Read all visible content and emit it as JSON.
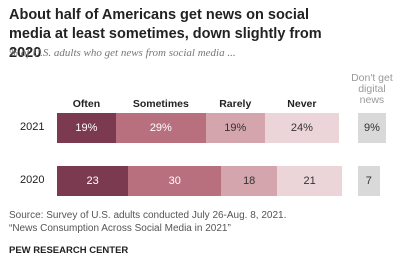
{
  "chart_data": {
    "type": "stacked_bar",
    "orientation": "horizontal",
    "title": "About half of Americans get news on social media at least sometimes, down slightly from 2020",
    "subtitle": "% of U.S. adults who get news from social media ...",
    "categories": [
      "2021",
      "2020"
    ],
    "series": [
      {
        "name": "Often",
        "color": "#7b3a4f",
        "values": [
          19,
          23
        ],
        "value_labels": [
          "19%",
          "23"
        ]
      },
      {
        "name": "Sometimes",
        "color": "#b8707f",
        "values": [
          29,
          30
        ],
        "value_labels": [
          "29%",
          "30"
        ]
      },
      {
        "name": "Rarely",
        "color": "#d5a5ad",
        "values": [
          19,
          18
        ],
        "value_labels": [
          "19%",
          "18"
        ]
      },
      {
        "name": "Never",
        "color": "#ecd5d9",
        "values": [
          24,
          21
        ],
        "value_labels": [
          "24%",
          "21"
        ]
      },
      {
        "name": "Don't get digital news",
        "color": "#d9d9d9",
        "values": [
          9,
          7
        ],
        "value_labels": [
          "9%",
          "7"
        ]
      }
    ],
    "notes": [
      "Source: Survey of U.S. adults conducted July 26-Aug. 8, 2021.",
      "“News Consumption Across Social Media in 2021”"
    ],
    "source": "PEW RESEARCH CENTER"
  }
}
